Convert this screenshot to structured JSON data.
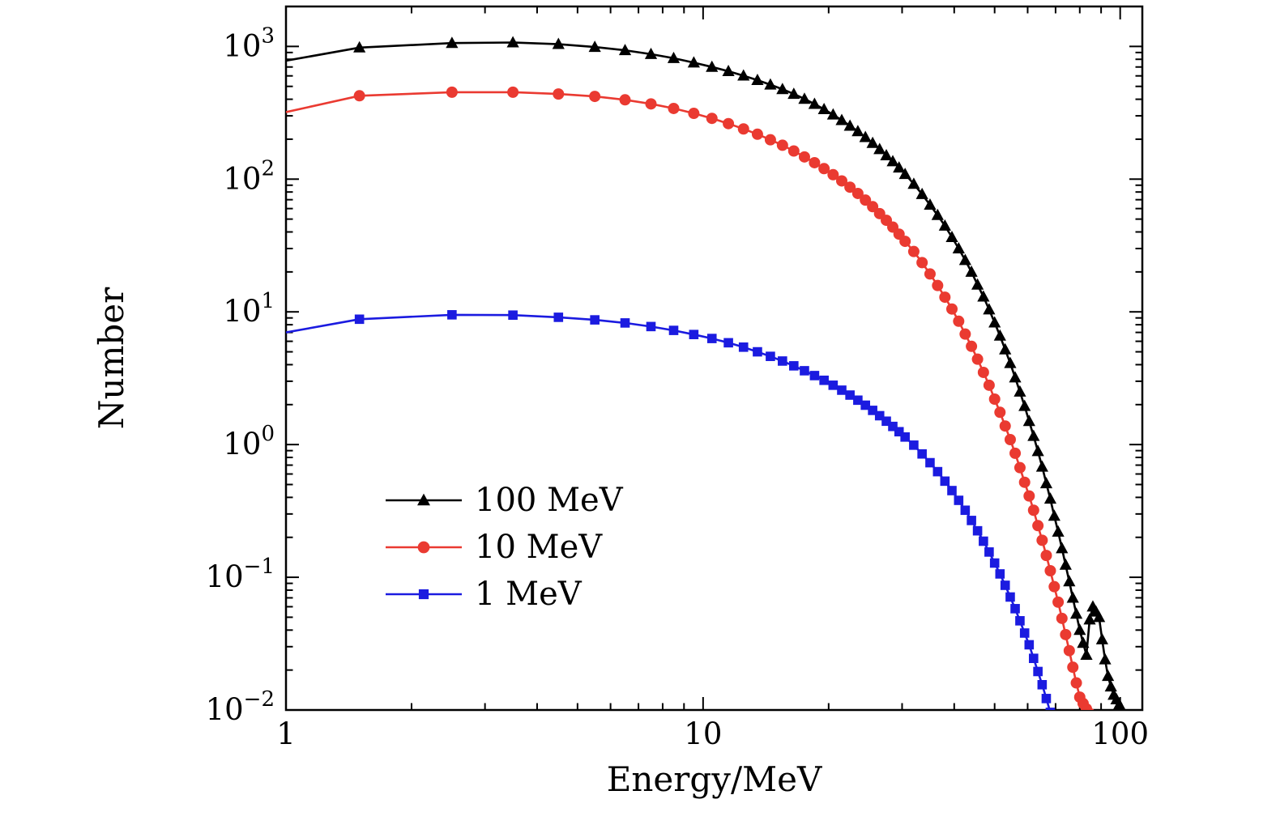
{
  "figure": {
    "background": "#ffffff",
    "frame_color": "#000000"
  },
  "chart_data": {
    "type": "line",
    "title": "",
    "xlabel": "Energy/MeV",
    "ylabel": "Number",
    "x_scale": "log",
    "y_scale": "log",
    "xlim": [
      1,
      113
    ],
    "ylim": [
      0.01,
      2000
    ],
    "grid": false,
    "legend_position": "inside lower-left",
    "x_ticks": [
      1,
      10,
      100
    ],
    "x_tick_labels": [
      "1",
      "10",
      "100"
    ],
    "y_tick_exponents": [
      -2,
      -1,
      0,
      1,
      2,
      3
    ],
    "series": [
      {
        "name": "100 MeV",
        "color": "#000000",
        "marker": "triangle",
        "points": [
          [
            1,
            780
          ],
          [
            1.5,
            980
          ],
          [
            2.5,
            1060
          ],
          [
            3.5,
            1070
          ],
          [
            4.5,
            1040
          ],
          [
            5.5,
            990
          ],
          [
            6.5,
            935
          ],
          [
            7.5,
            875
          ],
          [
            8.5,
            815
          ],
          [
            9.5,
            755
          ],
          [
            10.5,
            700
          ],
          [
            11.5,
            650
          ],
          [
            12.5,
            602
          ],
          [
            13.5,
            557
          ],
          [
            14.5,
            515
          ],
          [
            15.5,
            476
          ],
          [
            16.5,
            438
          ],
          [
            17.5,
            402
          ],
          [
            18.5,
            368
          ],
          [
            19.5,
            336
          ],
          [
            20.5,
            306
          ],
          [
            21.5,
            278
          ],
          [
            22.5,
            252
          ],
          [
            23.5,
            229
          ],
          [
            24.5,
            207
          ],
          [
            25.5,
            187
          ],
          [
            26.5,
            168
          ],
          [
            27.5,
            151
          ],
          [
            28.5,
            136
          ],
          [
            29.5,
            122
          ],
          [
            30.5,
            109
          ],
          [
            32,
            92
          ],
          [
            33.5,
            77
          ],
          [
            35,
            64
          ],
          [
            36.5,
            53.5
          ],
          [
            38,
            44.5
          ],
          [
            39.5,
            36.5
          ],
          [
            41,
            30
          ],
          [
            42.5,
            24.5
          ],
          [
            44,
            20
          ],
          [
            45.5,
            16
          ],
          [
            47,
            13
          ],
          [
            48.5,
            10.4
          ],
          [
            50,
            8.3
          ],
          [
            51.5,
            6.6
          ],
          [
            53,
            5.2
          ],
          [
            54.5,
            4.1
          ],
          [
            56,
            3.2
          ],
          [
            57.5,
            2.5
          ],
          [
            59,
            1.95
          ],
          [
            60.5,
            1.5
          ],
          [
            62,
            1.16
          ],
          [
            63.5,
            0.89
          ],
          [
            65,
            0.68
          ],
          [
            66.5,
            0.51
          ],
          [
            68,
            0.39
          ],
          [
            69.5,
            0.29
          ],
          [
            71,
            0.22
          ],
          [
            72.5,
            0.165
          ],
          [
            74,
            0.124
          ],
          [
            75.5,
            0.093
          ],
          [
            77,
            0.07
          ],
          [
            78.5,
            0.053
          ],
          [
            80,
            0.04
          ],
          [
            81.5,
            0.032
          ],
          [
            83,
            0.026
          ],
          [
            84.5,
            0.048
          ],
          [
            86,
            0.06
          ],
          [
            87.5,
            0.055
          ],
          [
            89,
            0.05
          ],
          [
            90.5,
            0.034
          ],
          [
            92,
            0.024
          ],
          [
            93.5,
            0.018
          ],
          [
            95,
            0.015
          ],
          [
            96.5,
            0.013
          ],
          [
            98,
            0.012
          ],
          [
            99.5,
            0.011
          ]
        ]
      },
      {
        "name": "10 MeV",
        "color": "#ea3a31",
        "marker": "circle",
        "points": [
          [
            1,
            320
          ],
          [
            1.5,
            425
          ],
          [
            2.5,
            452
          ],
          [
            3.5,
            452
          ],
          [
            4.5,
            438
          ],
          [
            5.5,
            420
          ],
          [
            6.5,
            396
          ],
          [
            7.5,
            369
          ],
          [
            8.5,
            341
          ],
          [
            9.5,
            313
          ],
          [
            10.5,
            287
          ],
          [
            11.5,
            262
          ],
          [
            12.5,
            239
          ],
          [
            13.5,
            218
          ],
          [
            14.5,
            198
          ],
          [
            15.5,
            180
          ],
          [
            16.5,
            163
          ],
          [
            17.5,
            147
          ],
          [
            18.5,
            133
          ],
          [
            19.5,
            120
          ],
          [
            20.5,
            108
          ],
          [
            21.5,
            97
          ],
          [
            22.5,
            87
          ],
          [
            23.5,
            78
          ],
          [
            24.5,
            69.5
          ],
          [
            25.5,
            62
          ],
          [
            26.5,
            55
          ],
          [
            27.5,
            49
          ],
          [
            28.5,
            43.5
          ],
          [
            29.5,
            38.5
          ],
          [
            30.5,
            34
          ],
          [
            32,
            28.5
          ],
          [
            33.5,
            23.5
          ],
          [
            35,
            19.3
          ],
          [
            36.5,
            15.8
          ],
          [
            38,
            12.9
          ],
          [
            39.5,
            10.5
          ],
          [
            41,
            8.5
          ],
          [
            42.5,
            6.8
          ],
          [
            44,
            5.5
          ],
          [
            45.5,
            4.4
          ],
          [
            47,
            3.5
          ],
          [
            48.5,
            2.8
          ],
          [
            50,
            2.2
          ],
          [
            51.5,
            1.75
          ],
          [
            53,
            1.38
          ],
          [
            54.5,
            1.09
          ],
          [
            56,
            0.86
          ],
          [
            57.5,
            0.67
          ],
          [
            59,
            0.52
          ],
          [
            60.5,
            0.41
          ],
          [
            62,
            0.32
          ],
          [
            63.5,
            0.245
          ],
          [
            65,
            0.19
          ],
          [
            66.5,
            0.146
          ],
          [
            68,
            0.112
          ],
          [
            69.5,
            0.085
          ],
          [
            71,
            0.065
          ],
          [
            72.5,
            0.049
          ],
          [
            74,
            0.037
          ],
          [
            75.5,
            0.028
          ],
          [
            77,
            0.021
          ],
          [
            78.5,
            0.016
          ],
          [
            80,
            0.0125
          ],
          [
            81.5,
            0.0112
          ],
          [
            83,
            0.0102
          ],
          [
            84.5,
            0.0094
          ]
        ]
      },
      {
        "name": "1 MeV",
        "color": "#1b1be0",
        "marker": "square",
        "points": [
          [
            1,
            7.0
          ],
          [
            1.5,
            8.8
          ],
          [
            2.5,
            9.5
          ],
          [
            3.5,
            9.45
          ],
          [
            4.5,
            9.1
          ],
          [
            5.5,
            8.7
          ],
          [
            6.5,
            8.25
          ],
          [
            7.5,
            7.75
          ],
          [
            8.5,
            7.25
          ],
          [
            9.5,
            6.75
          ],
          [
            10.5,
            6.3
          ],
          [
            11.5,
            5.85
          ],
          [
            12.5,
            5.42
          ],
          [
            13.5,
            5.0
          ],
          [
            14.5,
            4.62
          ],
          [
            15.5,
            4.26
          ],
          [
            16.5,
            3.92
          ],
          [
            17.5,
            3.6
          ],
          [
            18.5,
            3.31
          ],
          [
            19.5,
            3.05
          ],
          [
            20.5,
            2.8
          ],
          [
            21.5,
            2.57
          ],
          [
            22.5,
            2.36
          ],
          [
            23.5,
            2.16
          ],
          [
            24.5,
            1.98
          ],
          [
            25.5,
            1.81
          ],
          [
            26.5,
            1.65
          ],
          [
            27.5,
            1.5
          ],
          [
            28.5,
            1.37
          ],
          [
            29.5,
            1.25
          ],
          [
            30.5,
            1.14
          ],
          [
            32,
            0.99
          ],
          [
            33.5,
            0.85
          ],
          [
            35,
            0.73
          ],
          [
            36.5,
            0.625
          ],
          [
            38,
            0.53
          ],
          [
            39.5,
            0.45
          ],
          [
            41,
            0.38
          ],
          [
            42.5,
            0.32
          ],
          [
            44,
            0.268
          ],
          [
            45.5,
            0.224
          ],
          [
            47,
            0.187
          ],
          [
            48.5,
            0.155
          ],
          [
            50,
            0.128
          ],
          [
            51.5,
            0.106
          ],
          [
            53,
            0.087
          ],
          [
            54.5,
            0.071
          ],
          [
            56,
            0.058
          ],
          [
            57.5,
            0.047
          ],
          [
            59,
            0.038
          ],
          [
            60.5,
            0.031
          ],
          [
            62,
            0.0245
          ],
          [
            63.5,
            0.0195
          ],
          [
            65,
            0.0155
          ],
          [
            66.5,
            0.0122
          ],
          [
            68,
            0.0096
          ]
        ]
      }
    ]
  }
}
